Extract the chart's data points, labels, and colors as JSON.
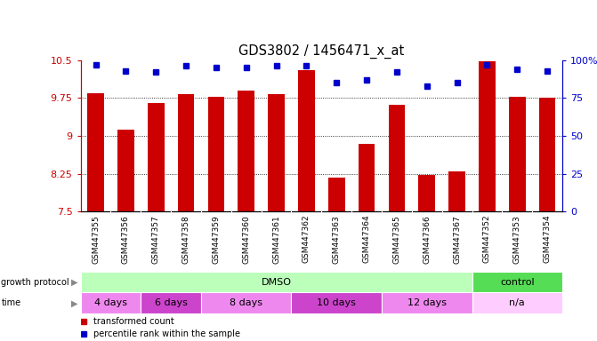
{
  "title": "GDS3802 / 1456471_x_at",
  "samples": [
    "GSM447355",
    "GSM447356",
    "GSM447357",
    "GSM447358",
    "GSM447359",
    "GSM447360",
    "GSM447361",
    "GSM447362",
    "GSM447363",
    "GSM447364",
    "GSM447365",
    "GSM447366",
    "GSM447367",
    "GSM447352",
    "GSM447353",
    "GSM447354"
  ],
  "bar_values": [
    9.85,
    9.12,
    9.65,
    9.83,
    9.78,
    9.9,
    9.83,
    10.3,
    8.18,
    8.85,
    9.62,
    8.22,
    8.3,
    10.48,
    9.78,
    9.75
  ],
  "dot_values": [
    97,
    93,
    92,
    96,
    95,
    95,
    96,
    96,
    85,
    87,
    92,
    83,
    85,
    97,
    94,
    93
  ],
  "ylim_left": [
    7.5,
    10.5
  ],
  "ylim_right": [
    0,
    100
  ],
  "yticks_left": [
    7.5,
    8.25,
    9.0,
    9.75,
    10.5
  ],
  "yticks_right": [
    0,
    25,
    50,
    75,
    100
  ],
  "ytick_labels_left": [
    "7.5",
    "8.25",
    "9",
    "9.75",
    "10.5"
  ],
  "ytick_labels_right": [
    "0",
    "25",
    "50",
    "75",
    "100%"
  ],
  "grid_values": [
    8.25,
    9.0,
    9.75
  ],
  "bar_color": "#cc0000",
  "dot_color": "#0000cc",
  "bar_bottom": 7.5,
  "protocol_groups": [
    {
      "label": "DMSO",
      "start": 0,
      "end": 13,
      "color": "#bbffbb"
    },
    {
      "label": "control",
      "start": 13,
      "end": 16,
      "color": "#55dd55"
    }
  ],
  "time_groups": [
    {
      "label": "4 days",
      "start": 0,
      "end": 2,
      "color": "#ee88ee"
    },
    {
      "label": "6 days",
      "start": 2,
      "end": 4,
      "color": "#cc44cc"
    },
    {
      "label": "8 days",
      "start": 4,
      "end": 7,
      "color": "#ee88ee"
    },
    {
      "label": "10 days",
      "start": 7,
      "end": 10,
      "color": "#cc44cc"
    },
    {
      "label": "12 days",
      "start": 10,
      "end": 13,
      "color": "#ee88ee"
    },
    {
      "label": "n/a",
      "start": 13,
      "end": 16,
      "color": "#ffccff"
    }
  ],
  "legend_items": [
    {
      "label": "transformed count",
      "color": "#cc0000"
    },
    {
      "label": "percentile rank within the sample",
      "color": "#0000cc"
    }
  ],
  "bg_color": "#ffffff",
  "xtick_bg_color": "#cccccc",
  "label_fontsize": 8,
  "title_fontsize": 10.5
}
